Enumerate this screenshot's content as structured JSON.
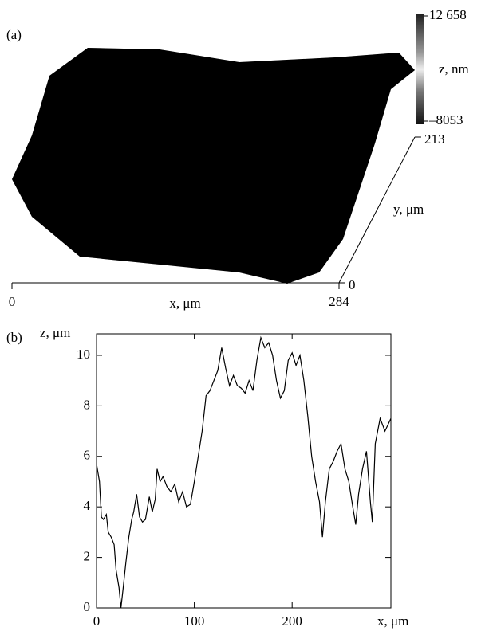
{
  "chart_data": [
    {
      "type": "surface",
      "panel_label": "(a)",
      "x_label": "x, μm",
      "y_label": "y, μm",
      "z_label": "z, nm",
      "xlim": [
        0,
        284
      ],
      "xticks": [
        0,
        284
      ],
      "ylim": [
        0,
        213
      ],
      "yticks": [
        0,
        213
      ],
      "zlim": [
        -8053,
        12658
      ],
      "zticks": [
        {
          "value": 12658,
          "label": "12 658"
        },
        {
          "value": -8053,
          "label": "–8053"
        }
      ]
    },
    {
      "type": "line",
      "panel_label": "(b)",
      "x_label": "x, μm",
      "y_label": "z, μm",
      "color": "#000000",
      "xlim": [
        0,
        301
      ],
      "xticks": [
        0,
        100,
        200
      ],
      "ylim": [
        0,
        10.85
      ],
      "yticks": [
        0,
        2,
        4,
        6,
        8,
        10
      ],
      "x": [
        0,
        3,
        5,
        7,
        10,
        12,
        15,
        18,
        20,
        23,
        25,
        27,
        30,
        33,
        36,
        38,
        41,
        44,
        47,
        50,
        54,
        57,
        60,
        62,
        65,
        68,
        72,
        76,
        80,
        84,
        88,
        92,
        96,
        100,
        104,
        108,
        112,
        116,
        120,
        124,
        128,
        132,
        136,
        140,
        144,
        148,
        152,
        156,
        160,
        164,
        168,
        172,
        176,
        180,
        184,
        188,
        192,
        196,
        200,
        204,
        208,
        212,
        216,
        220,
        224,
        228,
        231,
        234,
        238,
        242,
        246,
        250,
        254,
        258,
        262,
        265,
        268,
        272,
        276,
        280,
        282,
        285,
        290,
        295,
        301
      ],
      "values": [
        5.7,
        5.0,
        3.6,
        3.5,
        3.7,
        3.0,
        2.8,
        2.5,
        1.5,
        0.8,
        0,
        0.7,
        1.8,
        2.8,
        3.5,
        3.8,
        4.5,
        3.6,
        3.4,
        3.5,
        4.4,
        3.8,
        4.3,
        5.5,
        5.0,
        5.2,
        4.8,
        4.6,
        4.9,
        4.2,
        4.6,
        4.0,
        4.1,
        5.0,
        6.0,
        7.0,
        8.4,
        8.6,
        9.0,
        9.4,
        10.3,
        9.5,
        8.8,
        9.2,
        8.8,
        8.7,
        8.5,
        9.0,
        8.6,
        9.8,
        10.7,
        10.3,
        10.5,
        10.0,
        9.0,
        8.3,
        8.6,
        9.8,
        10.1,
        9.6,
        10.0,
        9.0,
        7.6,
        6.0,
        5.0,
        4.2,
        2.8,
        4.2,
        5.5,
        5.8,
        6.2,
        6.5,
        5.5,
        5.0,
        4.0,
        3.3,
        4.5,
        5.5,
        6.2,
        4.2,
        3.4,
        6.5,
        7.5,
        7.0,
        7.5
      ]
    }
  ]
}
